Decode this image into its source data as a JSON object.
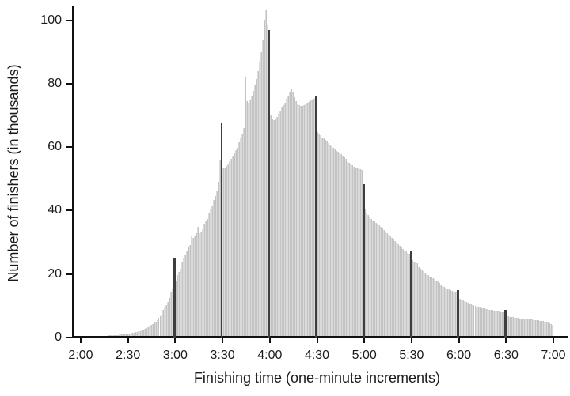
{
  "chart_data": {
    "type": "bar",
    "title": "",
    "xlabel": "Finishing time (one-minute increments)",
    "ylabel": "Number of finishers (in thousands)",
    "x_tick_labels": [
      "2:00",
      "2:30",
      "3:00",
      "3:30",
      "4:00",
      "4:30",
      "5:00",
      "5:30",
      "6:00",
      "6:30",
      "7:00"
    ],
    "y_tick_labels": [
      "0",
      "20",
      "40",
      "60",
      "80",
      "100"
    ],
    "y_ticks": [
      0,
      20,
      40,
      60,
      80,
      100
    ],
    "ylim": [
      0,
      104
    ],
    "grid": false,
    "legend": "none",
    "bin_width": "1 minute",
    "x_start": "2:00",
    "x_end": "7:00",
    "first_bar_minute": 121,
    "values": [
      0.25,
      0.26,
      0.28,
      0.29,
      0.3,
      0.32,
      0.34,
      0.36,
      0.38,
      0.4,
      0.43,
      0.46,
      0.49,
      0.52,
      0.55,
      0.58,
      0.61,
      0.64,
      0.67,
      0.7,
      0.74,
      0.78,
      0.82,
      0.86,
      0.9,
      0.95,
      1.0,
      1.05,
      1.1,
      1.2,
      1.27,
      1.35,
      1.47,
      1.6,
      1.7,
      1.8,
      1.95,
      2.1,
      2.3,
      2.5,
      2.75,
      3.0,
      3.3,
      3.6,
      3.95,
      4.3,
      4.65,
      5.0,
      5.6,
      6.2,
      6.7,
      7.3,
      8.6,
      9.4,
      10.3,
      11.3,
      12.4,
      14.1,
      15.4,
      25.2,
      18.0,
      19.6,
      20.6,
      21.7,
      23.8,
      24.8,
      25.9,
      27.5,
      28.3,
      29.2,
      32.1,
      31.5,
      32.1,
      33.0,
      35.0,
      32.9,
      33.5,
      34.2,
      35.8,
      36.6,
      37.5,
      39.2,
      40.4,
      41.6,
      43.3,
      44.7,
      46.2,
      49.1,
      56.0,
      67.6,
      53.3,
      53.6,
      54.1,
      54.8,
      55.6,
      56.3,
      57.2,
      58.2,
      59.0,
      59.8,
      61.5,
      62.8,
      64.0,
      66.0,
      81.9,
      74.4,
      74.0,
      74.8,
      76.2,
      77.7,
      79.4,
      81.5,
      84.0,
      86.8,
      90.0,
      94.0,
      100.2,
      103.2,
      98.5,
      96.9,
      69.9,
      68.9,
      68.5,
      68.7,
      69.5,
      70.5,
      71.5,
      72.4,
      73.3,
      74.1,
      75.2,
      76.1,
      77.2,
      78.2,
      77.5,
      75.8,
      74.5,
      73.8,
      73.2,
      73.0,
      73.1,
      73.3,
      73.6,
      73.9,
      74.3,
      74.7,
      75.0,
      75.3,
      75.6,
      76.1,
      64.9,
      64.3,
      63.7,
      63.1,
      62.8,
      62.4,
      61.9,
      61.4,
      60.9,
      60.3,
      59.9,
      59.4,
      58.9,
      58.5,
      58.3,
      57.8,
      57.3,
      56.8,
      56.2,
      55.4,
      55.0,
      54.6,
      54.2,
      53.9,
      53.7,
      53.5,
      53.3,
      53.1,
      52.9,
      48.3,
      40.4,
      39.2,
      38.6,
      37.9,
      37.4,
      37.0,
      36.6,
      36.2,
      35.8,
      35.3,
      34.8,
      34.4,
      33.9,
      33.3,
      32.8,
      32.3,
      31.8,
      31.3,
      30.8,
      30.3,
      29.8,
      29.3,
      28.8,
      28.3,
      27.9,
      27.5,
      27.1,
      26.7,
      26.4,
      27.4,
      24.3,
      23.9,
      23.6,
      23.3,
      22.1,
      21.7,
      21.3,
      20.9,
      20.4,
      20.0,
      19.6,
      19.3,
      19.0,
      18.7,
      18.4,
      18.0,
      17.6,
      17.1,
      16.7,
      16.3,
      16.0,
      15.7,
      15.4,
      15.2,
      15.0,
      14.7,
      14.5,
      14.4,
      14.2,
      15.0,
      12.1,
      11.8,
      11.6,
      11.4,
      11.2,
      10.9,
      10.7,
      10.5,
      10.3,
      10.1,
      9.9,
      9.8,
      9.6,
      9.5,
      9.3,
      9.2,
      9.1,
      9.0,
      8.9,
      8.8,
      8.7,
      8.6,
      8.4,
      8.3,
      8.2,
      8.1,
      8.0,
      7.9,
      7.9,
      8.6,
      6.8,
      6.7,
      6.6,
      6.5,
      6.4,
      6.3,
      6.25,
      6.2,
      6.1,
      6.05,
      6.0,
      5.95,
      5.9,
      5.85,
      5.8,
      5.75,
      5.7,
      5.6,
      5.5,
      5.45,
      5.4,
      5.3,
      5.25,
      5.2,
      5.1,
      4.9,
      4.7,
      4.5,
      4.3,
      4.1
    ],
    "highlighted_bar_indices": [
      59,
      89,
      119,
      149,
      179,
      209,
      239,
      269
    ],
    "highlighted_bar_times": [
      "3:00",
      "3:30",
      "4:00",
      "4:30",
      "5:00",
      "5:30",
      "6:00",
      "6:30"
    ],
    "notable_gray_spikes": [
      {
        "time": "3:15",
        "value": 35.0
      },
      {
        "time": "3:45",
        "value": 81.9
      },
      {
        "time": "3:58",
        "value": 103.2
      },
      {
        "time": "4:14",
        "value": 78.2
      }
    ],
    "colors": {
      "bar_fill": "#dadada",
      "bar_edge": "#c3c3c3",
      "highlight_fill": "#3e3e3e",
      "axis": "#111111",
      "text": "#1a1a1a",
      "background": "#ffffff"
    }
  }
}
